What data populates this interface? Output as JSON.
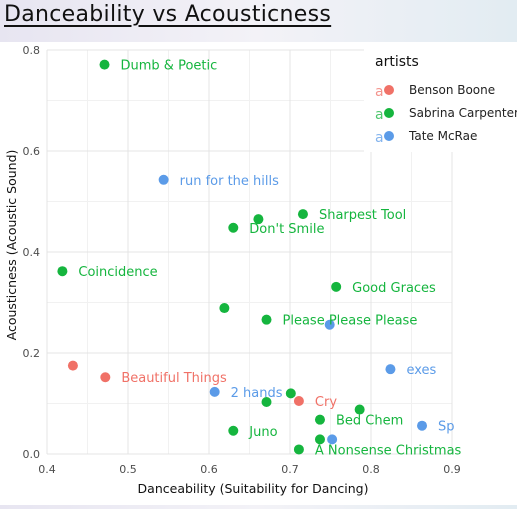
{
  "page_title": "Danceability vs Acousticness",
  "chart_data": {
    "type": "scatter",
    "xlabel": "Danceability (Suitability for Dancing)",
    "ylabel": "Acousticness (Acoustic Sound)",
    "xlim": [
      0.4,
      0.9
    ],
    "ylim": [
      0.0,
      0.8
    ],
    "x_ticks": [
      0.4,
      0.5,
      0.6,
      0.7,
      0.8,
      0.9
    ],
    "y_ticks": [
      0.0,
      0.2,
      0.4,
      0.6,
      0.8
    ],
    "grid": true,
    "legend_title": "artists",
    "legend_position": "top-right",
    "series": [
      {
        "name": "Benson Boone",
        "color": "#f07167",
        "points": [
          {
            "x": 0.432,
            "y": 0.175,
            "label": ""
          },
          {
            "x": 0.472,
            "y": 0.152,
            "label": "Beautiful Things"
          },
          {
            "x": 0.711,
            "y": 0.105,
            "label": "Cry"
          }
        ]
      },
      {
        "name": "Sabrina Carpenter",
        "color": "#15b53e",
        "points": [
          {
            "x": 0.471,
            "y": 0.771,
            "label": "Dumb & Poetic"
          },
          {
            "x": 0.419,
            "y": 0.362,
            "label": "Coincidence"
          },
          {
            "x": 0.716,
            "y": 0.475,
            "label": "Sharpest Tool"
          },
          {
            "x": 0.661,
            "y": 0.465,
            "label": ""
          },
          {
            "x": 0.63,
            "y": 0.448,
            "label": "Don't Smile"
          },
          {
            "x": 0.757,
            "y": 0.331,
            "label": "Good Graces"
          },
          {
            "x": 0.619,
            "y": 0.289,
            "label": ""
          },
          {
            "x": 0.671,
            "y": 0.266,
            "label": "Please Please Please"
          },
          {
            "x": 0.701,
            "y": 0.12,
            "label": ""
          },
          {
            "x": 0.671,
            "y": 0.103,
            "label": ""
          },
          {
            "x": 0.786,
            "y": 0.088,
            "label": ""
          },
          {
            "x": 0.737,
            "y": 0.068,
            "label": "Bed Chem"
          },
          {
            "x": 0.63,
            "y": 0.046,
            "label": "Juno"
          },
          {
            "x": 0.737,
            "y": 0.029,
            "label": ""
          },
          {
            "x": 0.711,
            "y": 0.009,
            "label": "A Nonsense Christmas"
          }
        ]
      },
      {
        "name": "Tate McRae",
        "color": "#5b9be8",
        "points": [
          {
            "x": 0.544,
            "y": 0.543,
            "label": "run for the hills"
          },
          {
            "x": 0.749,
            "y": 0.256,
            "label": ""
          },
          {
            "x": 0.824,
            "y": 0.168,
            "label": "exes"
          },
          {
            "x": 0.607,
            "y": 0.123,
            "label": "2 hands"
          },
          {
            "x": 0.863,
            "y": 0.056,
            "label": "Sp"
          },
          {
            "x": 0.752,
            "y": 0.029,
            "label": ""
          }
        ]
      }
    ]
  }
}
